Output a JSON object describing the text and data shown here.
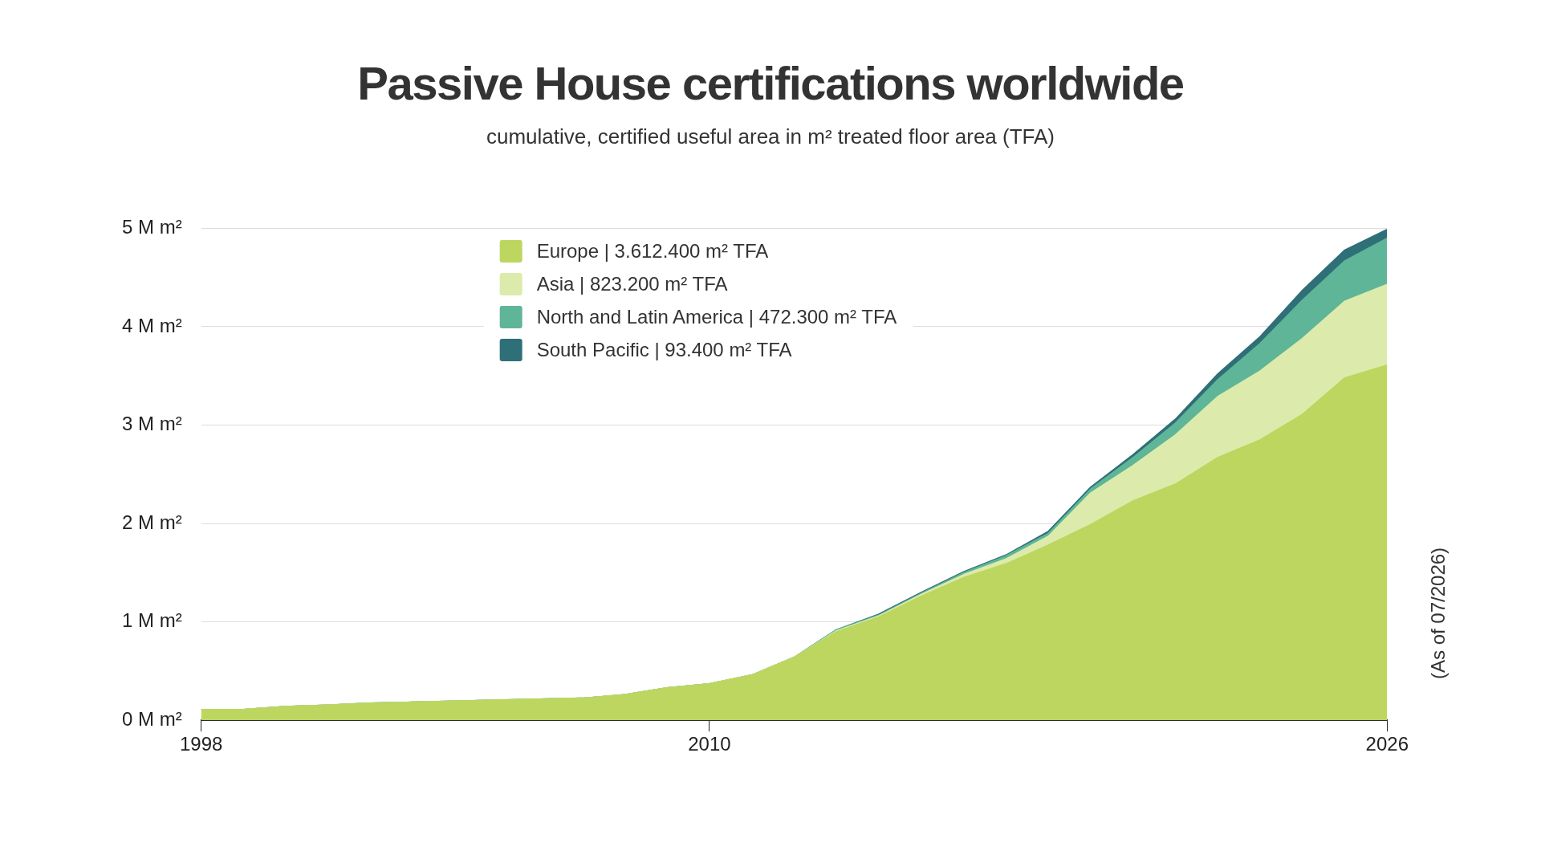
{
  "chart_data": {
    "type": "area",
    "title": "Passive House certifications worldwide",
    "subtitle": "cumulative, certified useful area in m² treated floor area (TFA)",
    "x": [
      1998,
      1999,
      2000,
      2001,
      2002,
      2003,
      2004,
      2005,
      2006,
      2007,
      2008,
      2009,
      2010,
      2011,
      2012,
      2013,
      2014,
      2015,
      2016,
      2017,
      2018,
      2019,
      2020,
      2021,
      2022,
      2023,
      2024,
      2025,
      2026
    ],
    "stacked": true,
    "series": [
      {
        "name": "Europe | 3.612.400 m² TFA",
        "color": "#bcd65f",
        "values": [
          0.11,
          0.11,
          0.14,
          0.155,
          0.175,
          0.185,
          0.195,
          0.205,
          0.215,
          0.225,
          0.26,
          0.33,
          0.37,
          0.46,
          0.64,
          0.9,
          1.05,
          1.26,
          1.45,
          1.59,
          1.78,
          1.99,
          2.23,
          2.4,
          2.67,
          2.85,
          3.11,
          3.48,
          3.61
        ]
      },
      {
        "name": "Asia | 823.200 m² TFA",
        "color": "#dcebab",
        "values": [
          0,
          0,
          0,
          0,
          0,
          0,
          0,
          0,
          0,
          0,
          0,
          0,
          0,
          0,
          0,
          0.01,
          0.01,
          0.02,
          0.03,
          0.05,
          0.09,
          0.32,
          0.36,
          0.5,
          0.62,
          0.7,
          0.77,
          0.78,
          0.82
        ]
      },
      {
        "name": "North and Latin America | 472.300 m² TFA",
        "color": "#5fb597",
        "values": [
          0,
          0,
          0,
          0,
          0,
          0,
          0,
          0,
          0,
          0,
          0,
          0,
          0,
          0,
          0,
          0.01,
          0.01,
          0.01,
          0.02,
          0.03,
          0.03,
          0.04,
          0.08,
          0.12,
          0.17,
          0.28,
          0.39,
          0.41,
          0.47
        ]
      },
      {
        "name": "South Pacific | 93.400 m² TFA",
        "color": "#2f6f77",
        "values": [
          0,
          0,
          0,
          0,
          0,
          0,
          0,
          0,
          0,
          0,
          0,
          0,
          0,
          0,
          0,
          0,
          0.01,
          0.01,
          0.01,
          0.01,
          0.02,
          0.02,
          0.03,
          0.04,
          0.06,
          0.07,
          0.1,
          0.11,
          0.09
        ]
      }
    ],
    "xlim": [
      1998,
      2026
    ],
    "xticks": [
      1998,
      2010,
      2026
    ],
    "ylim": [
      0,
      5
    ],
    "yticks": [
      {
        "value": 0,
        "label": "0 M m²"
      },
      {
        "value": 1,
        "label": "1 M m²"
      },
      {
        "value": 2,
        "label": "2 M m²"
      },
      {
        "value": 3,
        "label": "3 M m²"
      },
      {
        "value": 4,
        "label": "4 M m²"
      },
      {
        "value": 5,
        "label": "5 M m²"
      }
    ],
    "grid": "y",
    "legend": "top",
    "marker": "none",
    "annotations": [
      "(As of 07/2026)"
    ]
  }
}
